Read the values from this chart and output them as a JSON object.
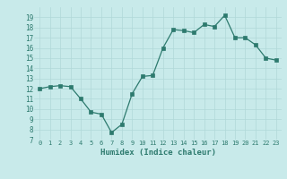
{
  "x": [
    0,
    1,
    2,
    3,
    4,
    5,
    6,
    7,
    8,
    9,
    10,
    11,
    12,
    13,
    14,
    15,
    16,
    17,
    18,
    19,
    20,
    21,
    22,
    23
  ],
  "y": [
    12.0,
    12.2,
    12.3,
    12.2,
    11.0,
    9.7,
    9.5,
    7.7,
    8.5,
    11.5,
    13.2,
    13.3,
    16.0,
    17.8,
    17.7,
    17.5,
    18.3,
    18.1,
    19.2,
    17.0,
    17.0,
    16.3,
    15.0,
    14.8
  ],
  "xlabel": "Humidex (Indice chaleur)",
  "ylim": [
    7,
    20
  ],
  "xlim": [
    -0.5,
    23.5
  ],
  "yticks": [
    7,
    8,
    9,
    10,
    11,
    12,
    13,
    14,
    15,
    16,
    17,
    18,
    19
  ],
  "xticks": [
    0,
    1,
    2,
    3,
    4,
    5,
    6,
    7,
    8,
    9,
    10,
    11,
    12,
    13,
    14,
    15,
    16,
    17,
    18,
    19,
    20,
    21,
    22,
    23
  ],
  "xtick_labels": [
    "0",
    "1",
    "2",
    "3",
    "4",
    "5",
    "6",
    "7",
    "8",
    "9",
    "10",
    "11",
    "12",
    "13",
    "14",
    "15",
    "16",
    "17",
    "18",
    "19",
    "20",
    "21",
    "22",
    "23"
  ],
  "line_color": "#2d7a6e",
  "marker_color": "#2d7a6e",
  "bg_color": "#c8eaea",
  "grid_color": "#b0d8d8",
  "xlabel_color": "#2d7a6e",
  "tick_color": "#2d7a6e"
}
